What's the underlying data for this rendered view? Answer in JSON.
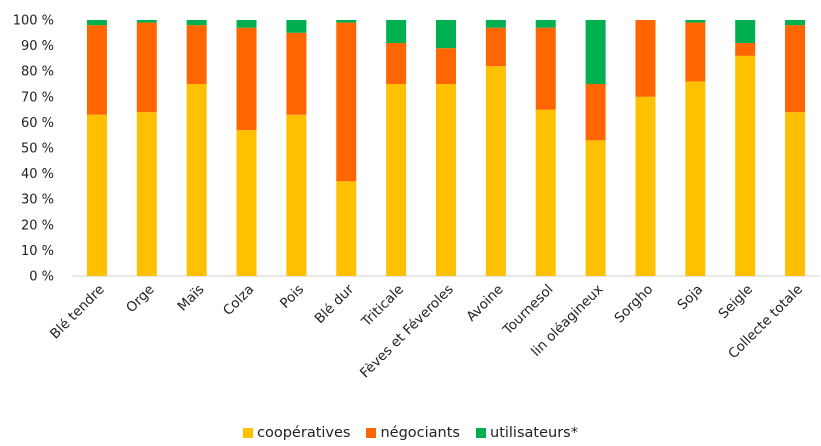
{
  "chart_data": {
    "type": "bar",
    "stacked": true,
    "percent": true,
    "categories": [
      "Blé tendre",
      "Orge",
      "Maïs",
      "Colza",
      "Pois",
      "Blé dur",
      "Triticale",
      "Fèves et Féveroles",
      "Avoine",
      "Tournesol",
      "lin oléagineux",
      "Sorgho",
      "Soja",
      "Seigle",
      "Collecte totale"
    ],
    "series": [
      {
        "name": "coopératives",
        "color": "#FFC000",
        "values": [
          63,
          64,
          75,
          57,
          63,
          37,
          75,
          75,
          82,
          65,
          53,
          70,
          76,
          86,
          64
        ]
      },
      {
        "name": "négociants",
        "color": "#FF6600",
        "values": [
          35,
          35,
          23,
          40,
          32,
          62,
          16,
          14,
          15,
          32,
          22,
          30,
          23,
          5,
          34
        ]
      },
      {
        "name": "utilisateurs*",
        "color": "#00B050",
        "values": [
          2,
          1,
          2,
          3,
          5,
          1,
          9,
          11,
          3,
          3,
          25,
          0,
          1,
          9,
          2
        ]
      }
    ],
    "ylim": [
      0,
      100
    ],
    "yticks": [
      "0 %",
      "10 %",
      "20 %",
      "30 %",
      "40 %",
      "50 %",
      "60 %",
      "70 %",
      "80 %",
      "90 %",
      "100 %"
    ],
    "grid": false,
    "legend_position": "bottom"
  }
}
